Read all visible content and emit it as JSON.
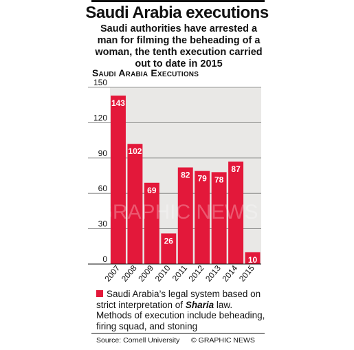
{
  "header": {
    "title": "Saudi Arabia executions",
    "subtitle": "Saudi authorities have arrested a man for filming the beheading of a woman, the tenth execution carried out to date in 2015"
  },
  "chart_data": {
    "type": "bar",
    "title": "Saudi Arabia Executions",
    "categories": [
      "2007",
      "2008",
      "2009",
      "2010",
      "2011",
      "2012",
      "2013",
      "2014",
      "2015"
    ],
    "values": [
      143,
      102,
      69,
      26,
      82,
      79,
      78,
      87,
      10
    ],
    "ylim": [
      0,
      150
    ],
    "yticks": [
      0,
      30,
      60,
      90,
      120,
      150
    ],
    "grid": true,
    "bar_color": "#e3183a"
  },
  "legend": {
    "text_before": "Saudi Arabia’s legal system based on strict interpretation of ",
    "emphasis": "Sharia",
    "text_after": " law. Methods of execution include beheading, firing squad, and stoning"
  },
  "footer": {
    "source": "Source: Cornell University",
    "credit": "© GRAPHIC NEWS"
  },
  "watermark": "GRAPHIC NEWS"
}
